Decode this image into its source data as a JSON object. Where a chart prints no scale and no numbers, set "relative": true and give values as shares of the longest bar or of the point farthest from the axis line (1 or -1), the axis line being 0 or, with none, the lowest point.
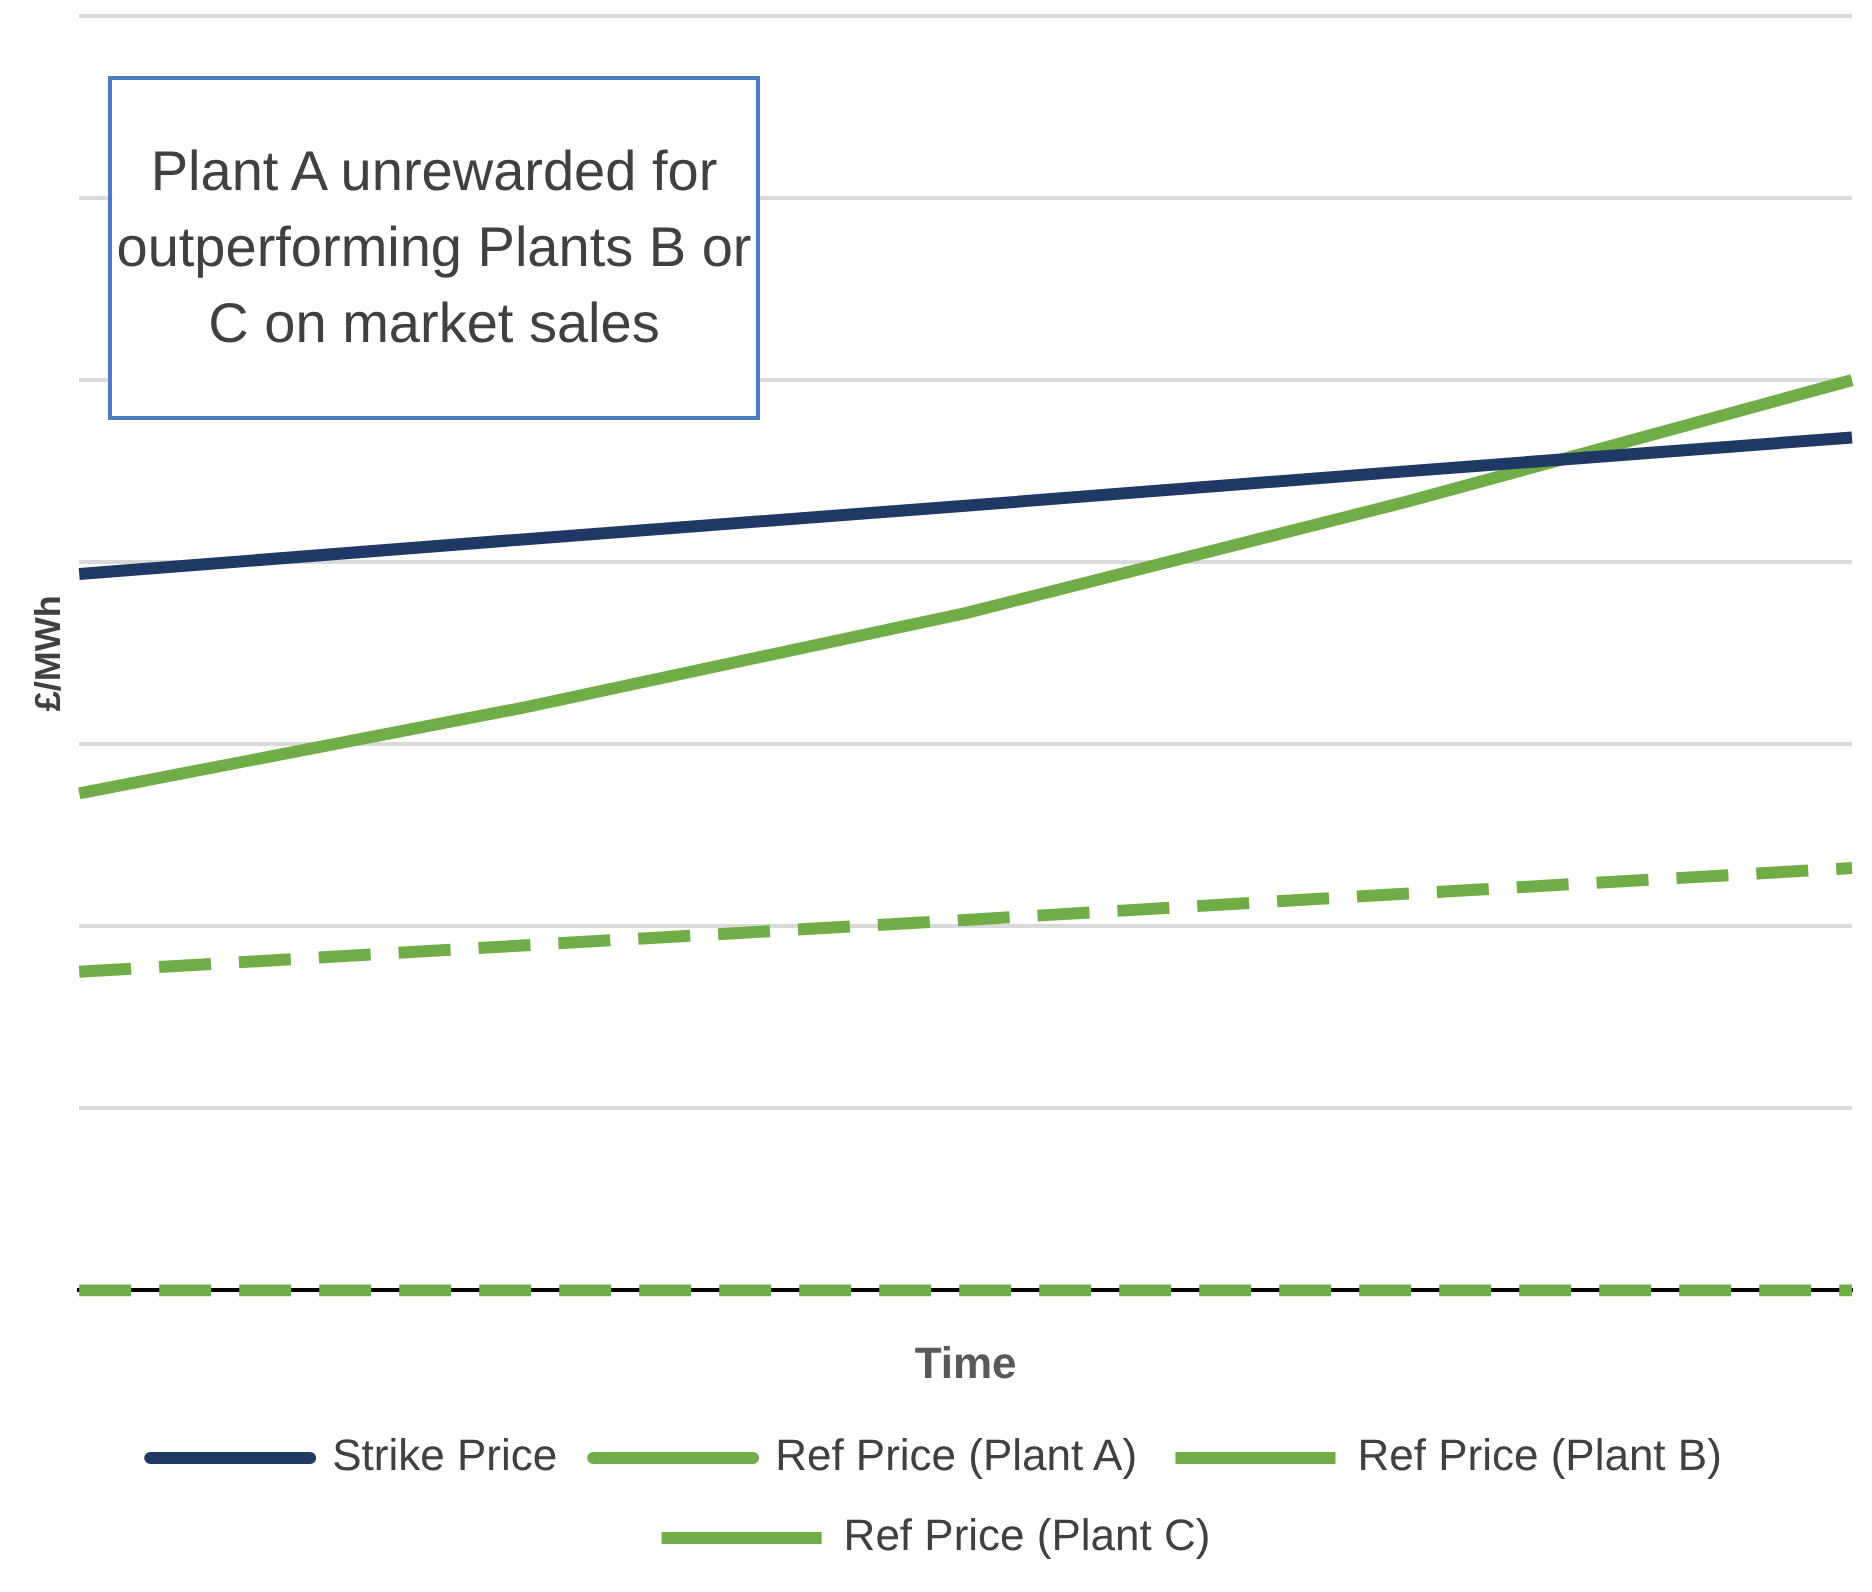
{
  "chart_data": {
    "type": "line",
    "relative": true,
    "xlabel": "Time",
    "ylabel": "£/MWh",
    "categories": [
      null,
      null,
      null,
      null,
      null
    ],
    "series": [
      {
        "name": "Strike Price",
        "color": "#203864",
        "line_style": "solid",
        "values": [
          0.787,
          0.825,
          0.862,
          0.9,
          0.937
        ]
      },
      {
        "name": "Ref Price (Plant A)",
        "color": "#70ad47",
        "line_style": "solid",
        "values": [
          0.546,
          0.64,
          0.744,
          0.867,
          1
        ]
      },
      {
        "name": "Ref Price (Plant B)",
        "color": "#70ad47",
        "line_style": "dashed",
        "values": [
          0.35,
          0.379,
          0.407,
          0.436,
          0.464
        ]
      },
      {
        "name": "Ref Price (Plant C)",
        "color": "#70ad47",
        "line_style": "dashed",
        "values": [
          0,
          0,
          0,
          0,
          0
        ]
      }
    ],
    "annotations": [
      "Plant A unrewarded for outperforming Plants B or C on market sales"
    ],
    "grid": "y",
    "legend": "bottom",
    "marker": "none"
  }
}
